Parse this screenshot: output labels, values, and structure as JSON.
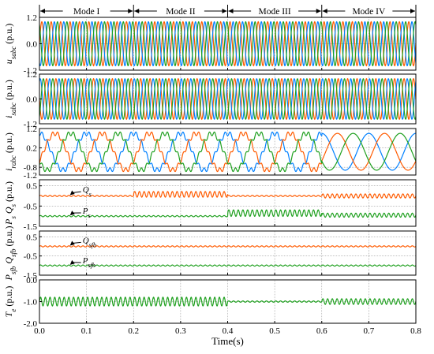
{
  "chart_data": {
    "type": "line",
    "xlabel": "Time(s)",
    "xlim": [
      0,
      0.8
    ],
    "x_ticks": [
      "0.0",
      "0.1",
      "0.2",
      "0.3",
      "0.4",
      "0.5",
      "0.6",
      "0.7",
      "0.8"
    ],
    "grid": true,
    "mode_boundaries": [
      0.0,
      0.2,
      0.4,
      0.6,
      0.8
    ],
    "modes": [
      "Mode I",
      "Mode II",
      "Mode III",
      "Mode IV"
    ],
    "colors": {
      "phase_a": "#ff5b00",
      "phase_b": "#0080ff",
      "phase_c": "#1fa01f",
      "grid": "#999999"
    },
    "panels": [
      {
        "id": "u_sabc",
        "ylabel_main": "u",
        "ylabel_sub": "sabc",
        "ylabel_unit": " (p.u.)",
        "ylim": [
          -1.2,
          1.2
        ],
        "y_ticks": [
          "1.2",
          "0.0",
          "-1.2"
        ],
        "series": [
          {
            "color": "#ff5b00",
            "kind": "sine",
            "amplitude": 1.0,
            "frequency_hz": 50,
            "phase_deg": 0
          },
          {
            "color": "#0080ff",
            "kind": "sine",
            "amplitude": 1.0,
            "frequency_hz": 50,
            "phase_deg": -120
          },
          {
            "color": "#1fa01f",
            "kind": "sine",
            "amplitude": 1.0,
            "frequency_hz": 50,
            "phase_deg": 120
          }
        ]
      },
      {
        "id": "i_sabc",
        "ylabel_main": "i",
        "ylabel_sub": "sabc",
        "ylabel_unit": " (p.u.)",
        "ylim": [
          -1.2,
          1.2
        ],
        "y_ticks": [
          "1.2",
          "0.0",
          "-1.2"
        ],
        "series": [
          {
            "color": "#ff5b00",
            "kind": "sine",
            "amplitude": 0.98,
            "frequency_hz": 50,
            "phase_deg": 180
          },
          {
            "color": "#0080ff",
            "kind": "sine",
            "amplitude": 0.98,
            "frequency_hz": 50,
            "phase_deg": 60
          },
          {
            "color": "#1fa01f",
            "kind": "sine",
            "amplitude": 0.98,
            "frequency_hz": 50,
            "phase_deg": -60
          }
        ]
      },
      {
        "id": "i_rabc",
        "ylabel_main": "i",
        "ylabel_sub": "rabc",
        "ylabel_unit": " (p.u.)",
        "ylim": [
          -1.2,
          1.2
        ],
        "y_ticks": [
          "1.2",
          "0.2",
          "-0.8",
          "-1.2"
        ],
        "y_tick_values": [
          1.2,
          0.2,
          -0.8,
          -1.2
        ],
        "segments": [
          {
            "x_range": [
              0.0,
              0.6
            ],
            "amplitude": 0.95,
            "frequency_hz": 10,
            "ripple_amplitude": 0.12,
            "ripple_frequency_hz": 90
          },
          {
            "x_range": [
              0.6,
              0.8
            ],
            "amplitude": 0.95,
            "frequency_hz": 10,
            "ripple_amplitude": 0.0,
            "ripple_frequency_hz": 0
          }
        ],
        "series": [
          {
            "color": "#0080ff",
            "phase_deg": 90
          },
          {
            "color": "#ff5b00",
            "phase_deg": -30
          },
          {
            "color": "#1fa01f",
            "phase_deg": 210
          }
        ]
      },
      {
        "id": "ps_qs",
        "ylabel_parts": [
          "P",
          "s",
          " Q",
          "s",
          " (p.u.)"
        ],
        "ylim": [
          -1.5,
          0.8
        ],
        "y_ticks": [
          "0.5",
          "-0.5",
          "-1.5"
        ],
        "y_tick_values": [
          0.5,
          -0.5,
          -1.5
        ],
        "annotations": [
          {
            "main": "Q",
            "sub": "s",
            "x": 0.075,
            "y": 0.25
          },
          {
            "main": "P",
            "sub": "s",
            "x": 0.075,
            "y": -0.8
          }
        ],
        "series": [
          {
            "name": "Qs",
            "color": "#ff5b00",
            "segments": [
              {
                "x_range": [
                  0.0,
                  0.2
                ],
                "mean": 0.0,
                "ripple_amplitude": 0.03,
                "ripple_frequency_hz": 100
              },
              {
                "x_range": [
                  0.2,
                  0.4
                ],
                "mean": 0.08,
                "ripple_amplitude": 0.14,
                "ripple_frequency_hz": 100
              },
              {
                "x_range": [
                  0.4,
                  0.6
                ],
                "mean": 0.0,
                "ripple_amplitude": 0.03,
                "ripple_frequency_hz": 100
              },
              {
                "x_range": [
                  0.6,
                  0.8
                ],
                "mean": 0.0,
                "ripple_amplitude": 0.1,
                "ripple_frequency_hz": 100
              }
            ]
          },
          {
            "name": "Ps",
            "color": "#1fa01f",
            "segments": [
              {
                "x_range": [
                  0.0,
                  0.2
                ],
                "mean": -1.0,
                "ripple_amplitude": 0.03,
                "ripple_frequency_hz": 100
              },
              {
                "x_range": [
                  0.2,
                  0.4
                ],
                "mean": -1.0,
                "ripple_amplitude": 0.03,
                "ripple_frequency_hz": 100
              },
              {
                "x_range": [
                  0.4,
                  0.6
                ],
                "mean": -0.85,
                "ripple_amplitude": 0.16,
                "ripple_frequency_hz": 100
              },
              {
                "x_range": [
                  0.6,
                  0.8
                ],
                "mean": -0.95,
                "ripple_amplitude": 0.1,
                "ripple_frequency_hz": 100
              }
            ]
          }
        ]
      },
      {
        "id": "psfb_qsfb",
        "ylabel_parts": [
          "P",
          "sfb",
          " Q",
          "sfb",
          " (p.u.)"
        ],
        "ylim": [
          -1.5,
          0.8
        ],
        "y_ticks": [
          "0.5",
          "-0.5",
          "-1.5"
        ],
        "y_tick_values": [
          0.5,
          -0.5,
          -1.5
        ],
        "annotations": [
          {
            "main": "Q",
            "sub": "sfb",
            "x": 0.075,
            "y": 0.25
          },
          {
            "main": "P",
            "sub": "sfb",
            "x": 0.075,
            "y": -0.8
          }
        ],
        "series": [
          {
            "name": "Qsfb",
            "color": "#ff5b00",
            "segments": [
              {
                "x_range": [
                  0.0,
                  0.8
                ],
                "mean": 0.0,
                "ripple_amplitude": 0.03,
                "ripple_frequency_hz": 100
              }
            ]
          },
          {
            "name": "Psfb",
            "color": "#1fa01f",
            "segments": [
              {
                "x_range": [
                  0.0,
                  0.8
                ],
                "mean": -1.0,
                "ripple_amplitude": 0.03,
                "ripple_frequency_hz": 100
              }
            ]
          }
        ]
      },
      {
        "id": "te",
        "ylabel_parts": [
          "T",
          "e",
          " (p.u.)"
        ],
        "ylim": [
          -2.0,
          0.0
        ],
        "y_ticks": [
          "0.0",
          "-1.0",
          "-2.0"
        ],
        "y_tick_values": [
          0.0,
          -1.0,
          -2.0
        ],
        "series": [
          {
            "name": "Te",
            "color": "#1fa01f",
            "segments": [
              {
                "x_range": [
                  0.0,
                  0.4
                ],
                "mean": -1.0,
                "ripple_amplitude": 0.2,
                "ripple_frequency_hz": 100
              },
              {
                "x_range": [
                  0.4,
                  0.6
                ],
                "mean": -1.0,
                "ripple_amplitude": 0.03,
                "ripple_frequency_hz": 100
              },
              {
                "x_range": [
                  0.6,
                  0.8
                ],
                "mean": -1.0,
                "ripple_amplitude": 0.13,
                "ripple_frequency_hz": 100
              }
            ]
          }
        ]
      }
    ]
  }
}
